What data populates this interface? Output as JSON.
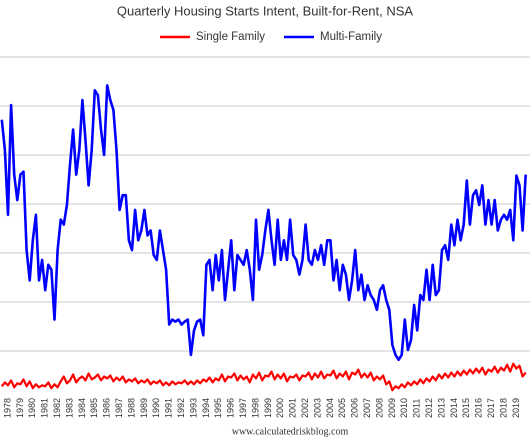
{
  "chart_data": {
    "type": "line",
    "title": "Quarterly Housing Starts Intent, Built-for-Rent, NSA",
    "source": "www.calculatedriskblog.com",
    "categories": [
      null,
      null,
      "1978",
      null,
      null,
      null,
      "1979",
      null,
      null,
      null,
      "1980",
      null,
      null,
      null,
      "1981",
      null,
      null,
      null,
      "1982",
      null,
      null,
      null,
      "1983",
      null,
      null,
      null,
      "1984",
      null,
      null,
      null,
      "1985",
      null,
      null,
      null,
      "1986",
      null,
      null,
      null,
      "1987",
      null,
      null,
      null,
      "1988",
      null,
      null,
      null,
      "1989",
      null,
      null,
      null,
      "1990",
      null,
      null,
      null,
      "1991",
      null,
      null,
      null,
      "1992",
      null,
      null,
      null,
      "1993",
      null,
      null,
      null,
      "1994",
      null,
      null,
      null,
      "1995",
      null,
      null,
      null,
      "1996",
      null,
      null,
      null,
      "1997",
      null,
      null,
      null,
      "1998",
      null,
      null,
      null,
      "1999",
      null,
      null,
      null,
      "2000",
      null,
      null,
      null,
      "2001",
      null,
      null,
      null,
      "2002",
      null,
      null,
      null,
      "2003",
      null,
      null,
      null,
      "2004",
      null,
      null,
      null,
      "2005",
      null,
      null,
      null,
      "2006",
      null,
      null,
      null,
      "2007",
      null,
      null,
      null,
      "2008",
      null,
      null,
      null,
      "2009",
      null,
      null,
      null,
      "2010",
      null,
      null,
      null,
      "2011",
      null,
      null,
      null,
      "2012",
      null,
      null,
      null,
      "2013",
      null,
      null,
      null,
      "2014",
      null,
      null,
      null,
      "2015",
      null,
      null,
      null,
      "2016",
      null,
      null,
      null,
      "2017",
      null,
      null,
      null,
      "2018",
      null,
      null,
      null,
      "2019",
      null,
      null,
      null
    ],
    "series": [
      {
        "name": "Single Family",
        "color": "#ff0000",
        "values": [
          1.4,
          1.8,
          1.5,
          2.0,
          1.3,
          1.7,
          1.6,
          2.1,
          1.4,
          1.9,
          1.2,
          1.6,
          1.3,
          1.5,
          1.4,
          1.8,
          1.2,
          1.6,
          1.3,
          1.9,
          2.4,
          1.7,
          2.0,
          2.6,
          1.8,
          2.2,
          2.4,
          2.0,
          2.7,
          2.1,
          2.3,
          2.6,
          2.0,
          2.4,
          2.2,
          2.5,
          1.9,
          2.3,
          2.0,
          2.4,
          1.8,
          2.1,
          1.9,
          2.2,
          1.7,
          2.0,
          1.8,
          2.1,
          1.6,
          1.9,
          1.7,
          2.0,
          1.5,
          1.8,
          1.5,
          1.9,
          1.6,
          1.8,
          1.7,
          2.0,
          1.6,
          1.9,
          1.6,
          2.0,
          1.7,
          2.1,
          1.9,
          2.3,
          1.8,
          2.2,
          2.0,
          2.6,
          1.9,
          2.4,
          2.3,
          2.7,
          2.0,
          2.5,
          2.1,
          2.4,
          1.8,
          2.6,
          2.2,
          2.8,
          2.0,
          2.5,
          2.4,
          2.9,
          2.1,
          2.6,
          2.2,
          2.7,
          1.9,
          2.4,
          2.3,
          2.6,
          2.0,
          2.5,
          2.4,
          2.8,
          2.1,
          2.7,
          2.3,
          2.9,
          2.2,
          2.6,
          2.5,
          3.0,
          2.2,
          2.7,
          2.4,
          2.9,
          2.1,
          2.8,
          2.6,
          3.1,
          2.3,
          2.7,
          2.3,
          2.8,
          2.0,
          2.4,
          2.1,
          2.5,
          1.6,
          1.9,
          1.0,
          1.4,
          1.2,
          1.6,
          1.3,
          1.8,
          1.5,
          1.9,
          1.6,
          2.1,
          1.7,
          2.2,
          1.9,
          2.4,
          2.0,
          2.6,
          2.2,
          2.7,
          2.3,
          2.8,
          2.4,
          2.9,
          2.5,
          3.0,
          2.6,
          3.1,
          2.7,
          3.2,
          2.8,
          3.3,
          2.6,
          3.1,
          2.9,
          3.4,
          2.8,
          3.3,
          3.0,
          3.6,
          2.9,
          3.7,
          3.2,
          3.5,
          2.4,
          2.8
        ]
      },
      {
        "name": "Multi-Family",
        "color": "#0000ff",
        "values": [
          28.6,
          25.5,
          18.9,
          30.1,
          23.0,
          20.4,
          23.0,
          23.3,
          15.3,
          12.2,
          16.3,
          18.9,
          12.2,
          14.3,
          11.2,
          13.8,
          13.3,
          8.2,
          15.3,
          18.4,
          17.9,
          19.9,
          24.0,
          27.6,
          23.0,
          25.5,
          30.6,
          26.5,
          21.9,
          25.5,
          31.6,
          31.1,
          27.6,
          25.0,
          32.1,
          30.6,
          29.6,
          25.5,
          19.4,
          20.9,
          20.9,
          16.3,
          15.3,
          19.4,
          16.3,
          17.3,
          19.4,
          16.8,
          17.3,
          14.8,
          14.3,
          17.3,
          15.3,
          13.3,
          7.7,
          8.2,
          8.0,
          8.2,
          7.7,
          8.0,
          8.2,
          4.6,
          7.1,
          8.0,
          8.2,
          6.6,
          13.8,
          14.3,
          11.2,
          14.8,
          12.2,
          15.3,
          10.2,
          13.3,
          16.3,
          11.2,
          14.8,
          14.3,
          13.8,
          15.3,
          13.3,
          10.2,
          18.4,
          13.3,
          14.8,
          17.3,
          19.4,
          16.3,
          13.8,
          18.4,
          14.3,
          16.3,
          14.3,
          18.4,
          14.8,
          14.3,
          12.8,
          14.3,
          17.9,
          14.3,
          13.8,
          15.3,
          14.3,
          15.8,
          13.8,
          16.3,
          16.3,
          12.2,
          14.3,
          11.2,
          13.8,
          12.8,
          10.2,
          12.2,
          15.3,
          11.2,
          12.8,
          10.2,
          11.7,
          10.7,
          10.2,
          9.2,
          11.2,
          11.7,
          10.2,
          9.2,
          5.6,
          4.6,
          4.1,
          4.6,
          8.2,
          5.1,
          6.1,
          9.7,
          7.1,
          10.7,
          10.2,
          13.3,
          10.2,
          13.8,
          10.7,
          11.2,
          15.3,
          15.8,
          14.3,
          17.9,
          15.8,
          18.4,
          16.3,
          17.9,
          22.4,
          17.9,
          20.9,
          21.4,
          19.9,
          21.9,
          17.9,
          20.4,
          17.9,
          20.4,
          17.3,
          18.4,
          18.9,
          18.4,
          19.4,
          16.3,
          22.9,
          21.9,
          17.3,
          23.0
        ]
      }
    ],
    "ylim": [
      0,
      35
    ],
    "ygrid": [
      5,
      10,
      15,
      20,
      25,
      30,
      35
    ],
    "grid": true,
    "legend": "top"
  }
}
